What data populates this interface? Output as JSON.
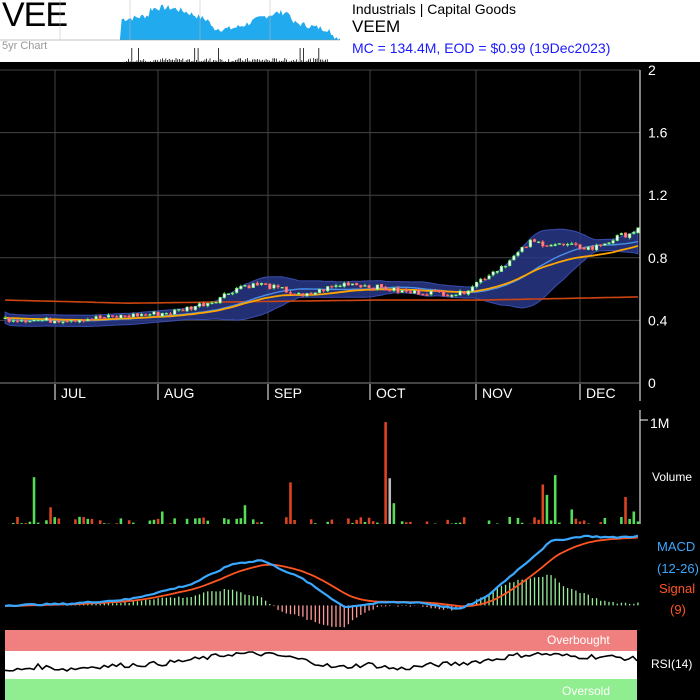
{
  "header": {
    "ticker": "VEE",
    "spark_label": "5yr Chart",
    "sector": "Industrials | Capital Goods",
    "company": "VEEM",
    "market_info": "MC = 134.4M, EOD = $0.99 (19Dec2023)"
  },
  "colors": {
    "up": "#55dd55",
    "down": "#dd4422",
    "ma_short": "#4a8fe8",
    "ma_long": "#ffa500",
    "ma_200": "#cc4411",
    "band": "#2a3b8f",
    "macd": "#3aa8ff",
    "signal": "#ff5522",
    "overbought": "#f08080",
    "oversold": "#90ee90"
  },
  "chart_data": [
    {
      "type": "candlestick",
      "ylim": [
        0,
        2
      ],
      "yticks": [
        "0",
        "0.4",
        "0.8",
        "1.2",
        "1.6",
        "2"
      ],
      "months": [
        "JUL",
        "AUG",
        "SEP",
        "OCT",
        "NOV",
        "DEC"
      ],
      "close_keypoints": [
        [
          0,
          0.41
        ],
        [
          10,
          0.4
        ],
        [
          20,
          0.41
        ],
        [
          30,
          0.43
        ],
        [
          40,
          0.45
        ],
        [
          50,
          0.52
        ],
        [
          57,
          0.62
        ],
        [
          62,
          0.63
        ],
        [
          68,
          0.59
        ],
        [
          72,
          0.55
        ],
        [
          77,
          0.6
        ],
        [
          83,
          0.64
        ],
        [
          90,
          0.61
        ],
        [
          97,
          0.58
        ],
        [
          102,
          0.58
        ],
        [
          110,
          0.57
        ],
        [
          115,
          0.66
        ],
        [
          122,
          0.78
        ],
        [
          127,
          0.9
        ],
        [
          135,
          0.88
        ],
        [
          142,
          0.86
        ],
        [
          149,
          0.94
        ],
        [
          153,
          0.98
        ]
      ],
      "ma200_keypoints": [
        [
          0,
          0.53
        ],
        [
          30,
          0.51
        ],
        [
          60,
          0.52
        ],
        [
          90,
          0.53
        ],
        [
          115,
          0.53
        ],
        [
          135,
          0.54
        ],
        [
          153,
          0.55
        ]
      ]
    },
    {
      "type": "bar",
      "label": "Volume",
      "ylim": [
        0,
        1000000
      ],
      "yticks": [
        "1M"
      ],
      "spikes": [
        [
          7,
          0.45
        ],
        [
          11,
          0.16
        ],
        [
          38,
          0.12
        ],
        [
          58,
          0.18
        ],
        [
          69,
          0.4
        ],
        [
          92,
          0.98
        ],
        [
          93,
          0.44
        ],
        [
          94,
          0.2
        ],
        [
          130,
          0.38
        ],
        [
          131,
          0.28
        ],
        [
          133,
          0.47
        ],
        [
          137,
          0.14
        ],
        [
          150,
          0.26
        ],
        [
          152,
          0.12
        ]
      ]
    },
    {
      "type": "line",
      "label": "MACD",
      "series": [
        {
          "name": "MACD",
          "params": "(12-26)"
        },
        {
          "name": "Signal",
          "params": "(9)"
        }
      ],
      "macd_keypoints": [
        [
          0,
          0.0
        ],
        [
          15,
          0.002
        ],
        [
          30,
          0.008
        ],
        [
          45,
          0.028
        ],
        [
          55,
          0.055
        ],
        [
          62,
          0.06
        ],
        [
          72,
          0.035
        ],
        [
          82,
          -0.002
        ],
        [
          92,
          0.004
        ],
        [
          100,
          0.004
        ],
        [
          110,
          -0.005
        ],
        [
          116,
          0.01
        ],
        [
          125,
          0.052
        ],
        [
          132,
          0.085
        ],
        [
          140,
          0.092
        ],
        [
          147,
          0.09
        ],
        [
          153,
          0.092
        ]
      ],
      "ylim": [
        -0.03,
        0.1
      ]
    },
    {
      "type": "line",
      "label": "RSI(14)",
      "ylim": [
        0,
        100
      ],
      "overbought_label": "Overbought",
      "oversold_label": "Oversold",
      "rsi_keypoints": [
        [
          0,
          40
        ],
        [
          8,
          48
        ],
        [
          15,
          44
        ],
        [
          22,
          48
        ],
        [
          30,
          50
        ],
        [
          38,
          52
        ],
        [
          46,
          58
        ],
        [
          55,
          66
        ],
        [
          62,
          66
        ],
        [
          68,
          62
        ],
        [
          74,
          55
        ],
        [
          80,
          46
        ],
        [
          88,
          51
        ],
        [
          95,
          44
        ],
        [
          103,
          50
        ],
        [
          110,
          52
        ],
        [
          118,
          58
        ],
        [
          124,
          64
        ],
        [
          130,
          66
        ],
        [
          138,
          62
        ],
        [
          145,
          62
        ],
        [
          150,
          60
        ],
        [
          153,
          58
        ]
      ]
    }
  ]
}
